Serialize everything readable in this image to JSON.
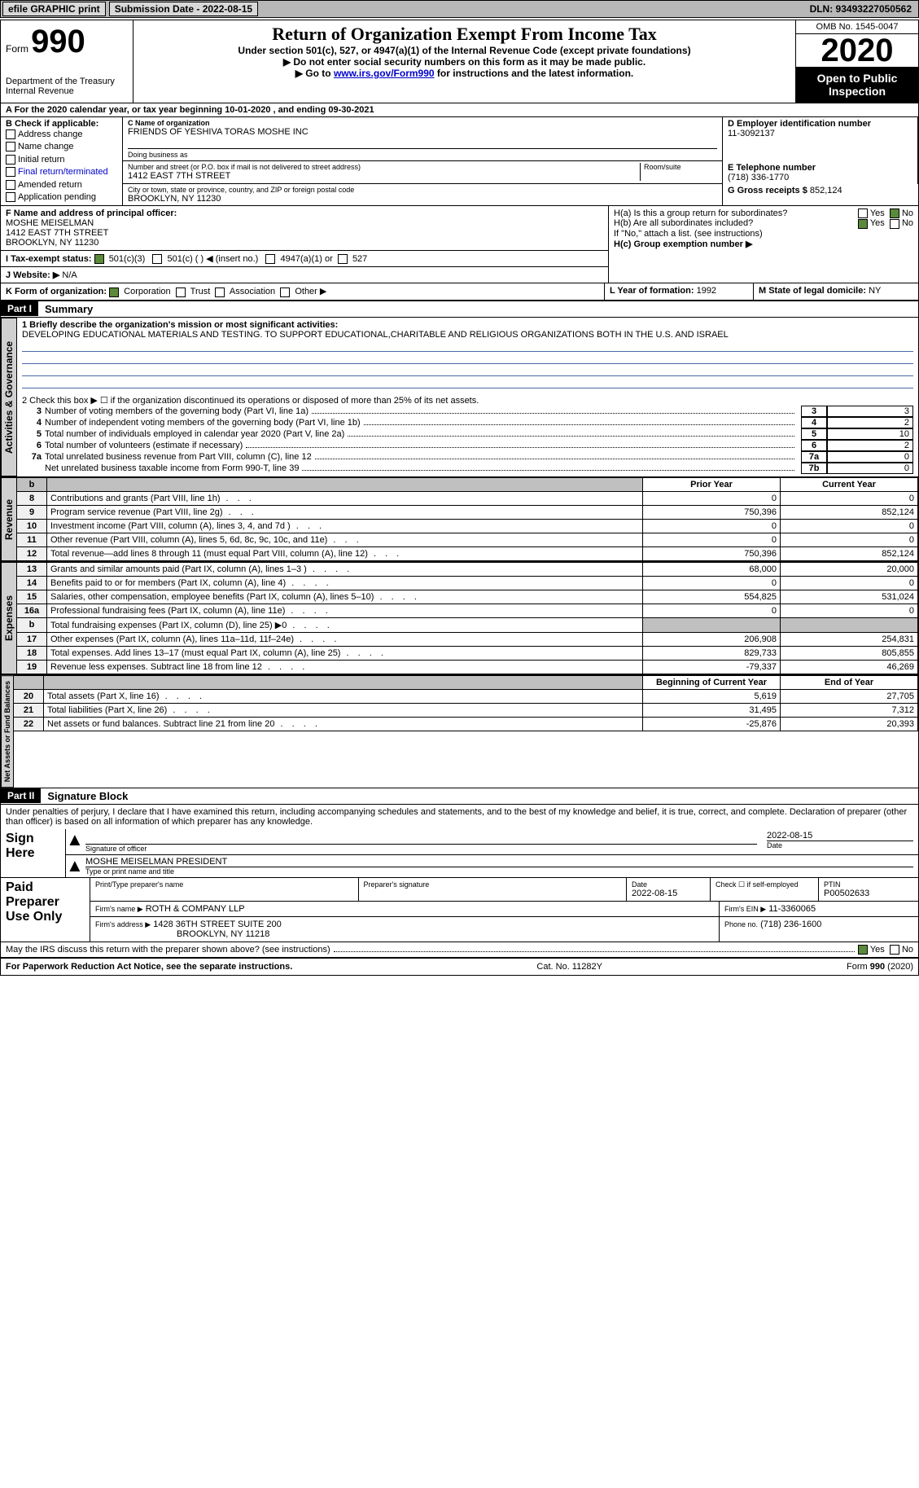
{
  "colors": {
    "bg": "#ffffff",
    "ink": "#000000",
    "link": "#0000cc",
    "topbar": "#b8b8b8",
    "btn": "#d8d8d8",
    "chk_on": "#5a8a3a",
    "shade": "#c0c0c0",
    "vtab_bg": "#d0d0d0",
    "rule_line": "#4a6aa8"
  },
  "topbar": {
    "efile": "efile GRAPHIC print",
    "submission_label": "Submission Date - 2022-08-15",
    "dln_label": "DLN: 93493227050562"
  },
  "header": {
    "form_prefix": "Form",
    "form_number": "990",
    "dept1": "Department of the Treasury",
    "dept2": "Internal Revenue",
    "title": "Return of Organization Exempt From Income Tax",
    "subtitle": "Under section 501(c), 527, or 4947(a)(1) of the Internal Revenue Code (except private foundations)",
    "warn1": "Do not enter social security numbers on this form as it may be made public.",
    "warn2_pre": "Go to ",
    "warn2_link": "www.irs.gov/Form990",
    "warn2_post": " for instructions and the latest information.",
    "omb": "OMB No. 1545-0047",
    "year": "2020",
    "otpi": "Open to Public Inspection"
  },
  "period": {
    "text": "A For the 2020 calendar year, or tax year beginning 10-01-2020    , and ending 09-30-2021"
  },
  "boxB": {
    "label": "B Check if applicable:",
    "items": [
      "Address change",
      "Name change",
      "Initial return",
      "Final return/terminated",
      "Amended return",
      "Application pending"
    ]
  },
  "boxC": {
    "name_label": "C Name of organization",
    "name": "FRIENDS OF YESHIVA TORAS MOSHE INC",
    "dba_label": "Doing business as",
    "addr_label": "Number and street (or P.O. box if mail is not delivered to street address)",
    "room_label": "Room/suite",
    "addr": "1412 EAST 7TH STREET",
    "csz_label": "City or town, state or province, country, and ZIP or foreign postal code",
    "csz": "BROOKLYN, NY  11230"
  },
  "boxD": {
    "label": "D Employer identification number",
    "value": "11-3092137"
  },
  "boxE": {
    "label": "E Telephone number",
    "value": "(718) 336-1770"
  },
  "boxG": {
    "label": "G Gross receipts $",
    "value": "852,124"
  },
  "boxF": {
    "label": "F  Name and address of principal officer:",
    "name": "MOSHE MEISELMAN",
    "addr1": "1412 EAST 7TH STREET",
    "addr2": "BROOKLYN, NY  11230"
  },
  "boxH": {
    "a_label": "H(a)  Is this a group return for subordinates?",
    "a_yes": "Yes",
    "a_no": "No",
    "b_label": "H(b)  Are all subordinates included?",
    "b_note": "If \"No,\" attach a list. (see instructions)",
    "c_label": "H(c)  Group exemption number ▶"
  },
  "boxI": {
    "label": "I  Tax-exempt status:",
    "c3": "501(c)(3)",
    "c_other": "501(c) (   ) ◀ (insert no.)",
    "a4947": "4947(a)(1) or",
    "s527": "527"
  },
  "boxJ": {
    "label": "J   Website: ▶",
    "value": "N/A"
  },
  "boxK": {
    "label": "K Form of organization:",
    "corp": "Corporation",
    "trust": "Trust",
    "assoc": "Association",
    "other": "Other ▶"
  },
  "boxL": {
    "label": "L Year of formation:",
    "value": "1992"
  },
  "boxM": {
    "label": "M State of legal domicile:",
    "value": "NY"
  },
  "part1": {
    "hdr": "Part I",
    "title": "Summary",
    "q1_label": "1  Briefly describe the organization's mission or most significant activities:",
    "q1_text": "DEVELOPING EDUCATIONAL MATERIALS AND TESTING. TO SUPPORT EDUCATIONAL,CHARITABLE AND RELIGIOUS ORGANIZATIONS BOTH IN THE U.S. AND ISRAEL",
    "q2_label": "2   Check this box ▶ ☐  if the organization discontinued its operations or disposed of more than 25% of its net assets.",
    "gov_rows": [
      {
        "n": "3",
        "d": "Number of voting members of the governing body (Part VI, line 1a)",
        "k": "3",
        "v": "3"
      },
      {
        "n": "4",
        "d": "Number of independent voting members of the governing body (Part VI, line 1b)",
        "k": "4",
        "v": "2"
      },
      {
        "n": "5",
        "d": "Total number of individuals employed in calendar year 2020 (Part V, line 2a)",
        "k": "5",
        "v": "10"
      },
      {
        "n": "6",
        "d": "Total number of volunteers (estimate if necessary)",
        "k": "6",
        "v": "2"
      },
      {
        "n": "7a",
        "d": "Total unrelated business revenue from Part VIII, column (C), line 12",
        "k": "7a",
        "v": "0"
      },
      {
        "n": "",
        "d": "Net unrelated business taxable income from Form 990-T, line 39",
        "k": "7b",
        "v": "0"
      }
    ],
    "prior_hdr": "Prior Year",
    "curr_hdr": "Current Year",
    "rev_rows": [
      {
        "n": "8",
        "d": "Contributions and grants (Part VIII, line 1h)",
        "p": "0",
        "c": "0"
      },
      {
        "n": "9",
        "d": "Program service revenue (Part VIII, line 2g)",
        "p": "750,396",
        "c": "852,124"
      },
      {
        "n": "10",
        "d": "Investment income (Part VIII, column (A), lines 3, 4, and 7d )",
        "p": "0",
        "c": "0"
      },
      {
        "n": "11",
        "d": "Other revenue (Part VIII, column (A), lines 5, 6d, 8c, 9c, 10c, and 11e)",
        "p": "0",
        "c": "0"
      },
      {
        "n": "12",
        "d": "Total revenue—add lines 8 through 11 (must equal Part VIII, column (A), line 12)",
        "p": "750,396",
        "c": "852,124"
      }
    ],
    "exp_rows": [
      {
        "n": "13",
        "d": "Grants and similar amounts paid (Part IX, column (A), lines 1–3 )",
        "p": "68,000",
        "c": "20,000"
      },
      {
        "n": "14",
        "d": "Benefits paid to or for members (Part IX, column (A), line 4)",
        "p": "0",
        "c": "0"
      },
      {
        "n": "15",
        "d": "Salaries, other compensation, employee benefits (Part IX, column (A), lines 5–10)",
        "p": "554,825",
        "c": "531,024"
      },
      {
        "n": "16a",
        "d": "Professional fundraising fees (Part IX, column (A), line 11e)",
        "p": "0",
        "c": "0"
      },
      {
        "n": "b",
        "d": "Total fundraising expenses (Part IX, column (D), line 25) ▶0",
        "p": "",
        "c": "",
        "shade": true
      },
      {
        "n": "17",
        "d": "Other expenses (Part IX, column (A), lines 11a–11d, 11f–24e)",
        "p": "206,908",
        "c": "254,831"
      },
      {
        "n": "18",
        "d": "Total expenses. Add lines 13–17 (must equal Part IX, column (A), line 25)",
        "p": "829,733",
        "c": "805,855"
      },
      {
        "n": "19",
        "d": "Revenue less expenses. Subtract line 18 from line 12",
        "p": "-79,337",
        "c": "46,269"
      }
    ],
    "na_hdr_l": "Beginning of Current Year",
    "na_hdr_r": "End of Year",
    "na_rows": [
      {
        "n": "20",
        "d": "Total assets (Part X, line 16)",
        "p": "5,619",
        "c": "27,705"
      },
      {
        "n": "21",
        "d": "Total liabilities (Part X, line 26)",
        "p": "31,495",
        "c": "7,312"
      },
      {
        "n": "22",
        "d": "Net assets or fund balances. Subtract line 21 from line 20",
        "p": "-25,876",
        "c": "20,393"
      }
    ],
    "vtabs": {
      "gov": "Activities & Governance",
      "rev": "Revenue",
      "exp": "Expenses",
      "na": "Net Assets or Fund Balances"
    }
  },
  "part2": {
    "hdr": "Part II",
    "title": "Signature Block",
    "decl": "Under penalties of perjury, I declare that I have examined this return, including accompanying schedules and statements, and to the best of my knowledge and belief, it is true, correct, and complete. Declaration of preparer (other than officer) is based on all information of which preparer has any knowledge.",
    "sign_here": "Sign Here",
    "sig_officer": "Signature of officer",
    "sig_date": "Date",
    "sig_date_val": "2022-08-15",
    "officer_name": "MOSHE MEISELMAN PRESIDENT",
    "officer_sub": "Type or print name and title",
    "paid_prep": "Paid Preparer Use Only",
    "pp_name_l": "Print/Type preparer's name",
    "pp_sig_l": "Preparer's signature",
    "pp_date_l": "Date",
    "pp_date_v": "2022-08-15",
    "pp_self_l": "Check ☐ if self-employed",
    "pp_ptin_l": "PTIN",
    "pp_ptin_v": "P00502633",
    "firm_name_l": "Firm's name    ▶",
    "firm_name_v": "ROTH & COMPANY LLP",
    "firm_ein_l": "Firm's EIN ▶",
    "firm_ein_v": "11-3360065",
    "firm_addr_l": "Firm's address ▶",
    "firm_addr_v1": "1428 36TH STREET SUITE 200",
    "firm_addr_v2": "BROOKLYN, NY  11218",
    "firm_phone_l": "Phone no.",
    "firm_phone_v": "(718) 236-1600",
    "discuss": "May the IRS discuss this return with the preparer shown above? (see instructions)",
    "yes": "Yes",
    "no": "No"
  },
  "footer": {
    "pra": "For Paperwork Reduction Act Notice, see the separate instructions.",
    "cat": "Cat. No. 11282Y",
    "form": "Form 990 (2020)"
  }
}
